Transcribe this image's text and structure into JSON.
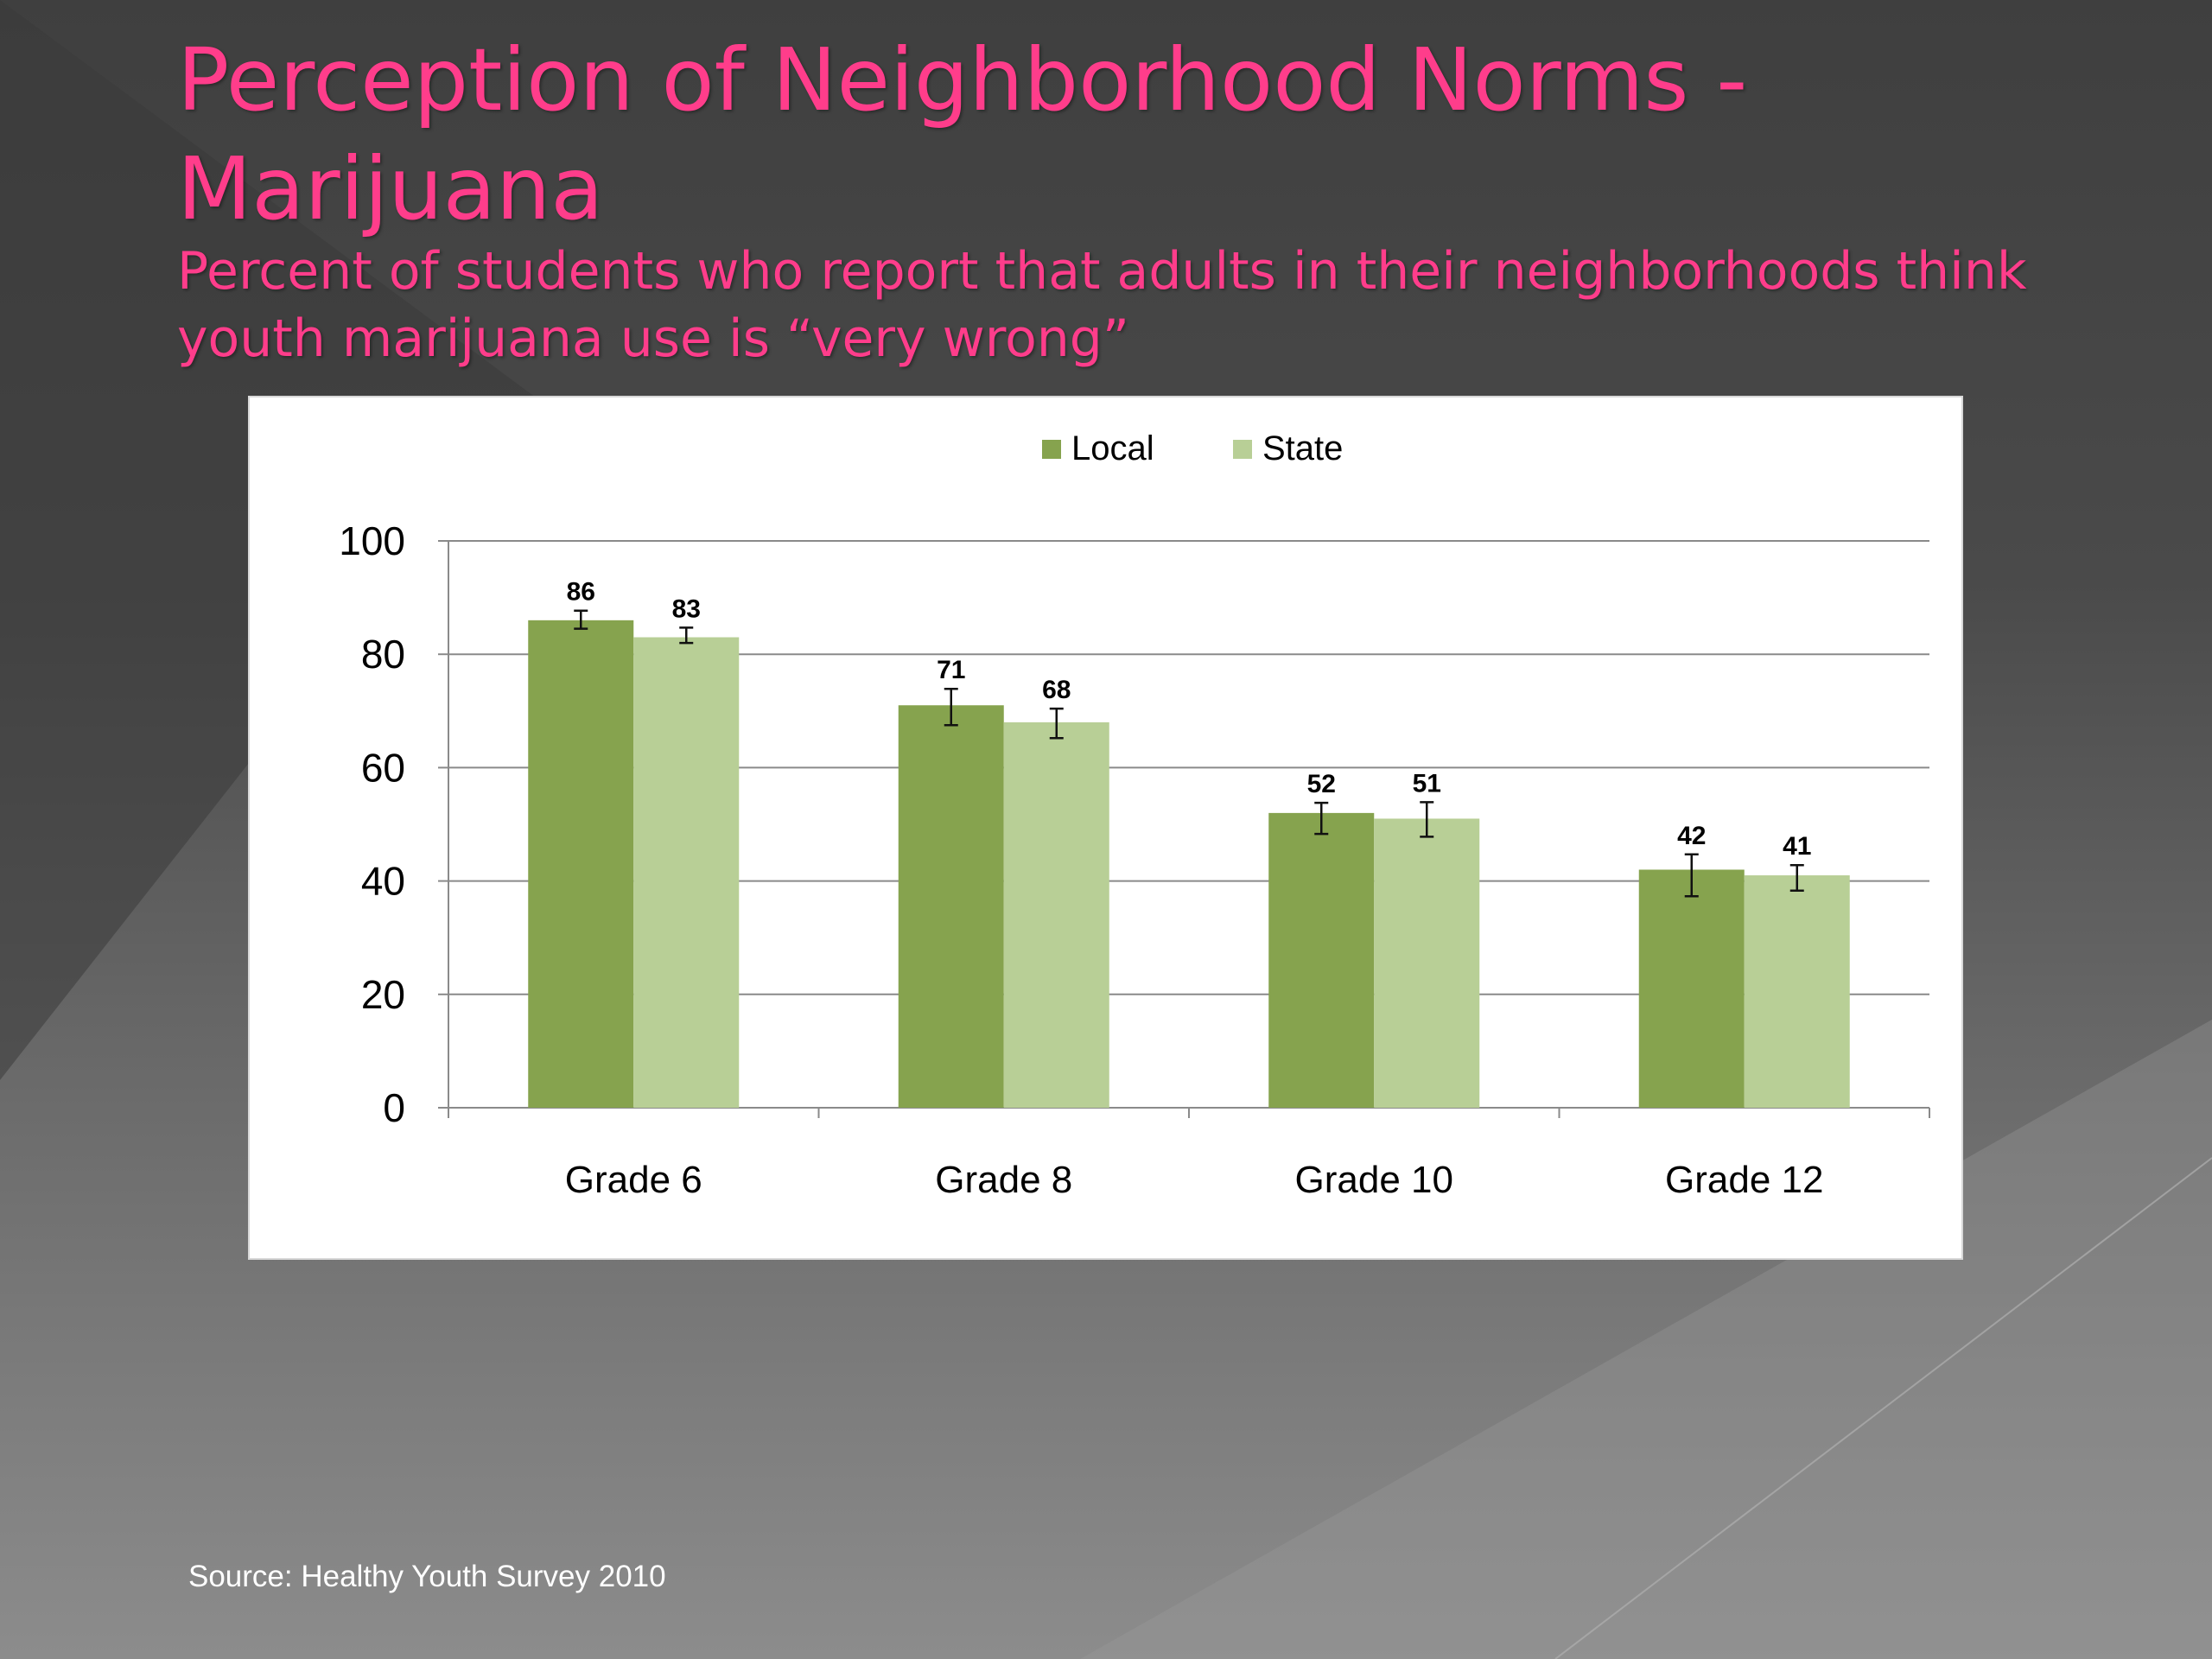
{
  "slide": {
    "title": "Perception of Neighborhood Norms - Marijuana",
    "subtitle": "Percent of students who report that adults in their neighborhoods think youth marijuana use is “very wrong”",
    "source": "Source: Healthy Youth Survey 2010",
    "title_color": "#ff3d8b"
  },
  "chart_data": {
    "type": "bar",
    "categories": [
      "Grade 6",
      "Grade 8",
      "Grade 10",
      "Grade 12"
    ],
    "series": [
      {
        "name": "Local",
        "values": [
          86,
          71,
          52,
          42
        ],
        "error_low": [
          84.5,
          67.5,
          48.3,
          37.3
        ],
        "error_high": [
          87.7,
          73.9,
          53.8,
          44.7
        ],
        "color": "#86a34e"
      },
      {
        "name": "State",
        "values": [
          83,
          68,
          51,
          41
        ],
        "error_low": [
          82.0,
          65.2,
          47.8,
          38.3
        ],
        "error_high": [
          84.7,
          70.4,
          53.9,
          42.8
        ],
        "color": "#b8cf96"
      }
    ],
    "data_labels": [
      [
        "86",
        "71",
        "52",
        "42"
      ],
      [
        "83",
        "68",
        "51",
        "41"
      ]
    ],
    "yticks": [
      "0",
      "20",
      "40",
      "60",
      "80",
      "100"
    ],
    "ylim": [
      0,
      100
    ],
    "grid": true,
    "legend": "top-center",
    "title": "",
    "xlabel": "",
    "ylabel": ""
  }
}
